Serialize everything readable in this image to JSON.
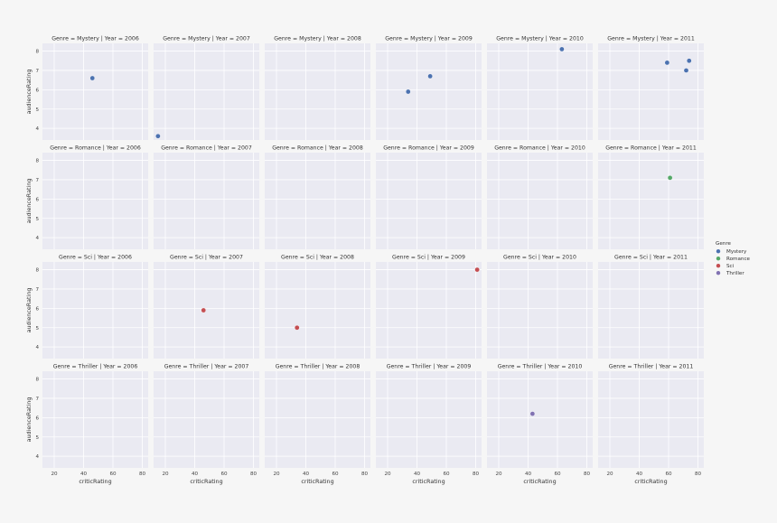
{
  "chart_data": {
    "type": "scatter",
    "x_label": "criticRating",
    "y_label": "audienceRating",
    "xlim": [
      12,
      84
    ],
    "ylim": [
      3.4,
      8.4
    ],
    "x_ticks": [
      20,
      40,
      60,
      80
    ],
    "y_ticks": [
      4,
      5,
      6,
      7,
      8
    ],
    "grid": true,
    "facet_row_var": "Genre",
    "facet_col_var": "Year",
    "rows": [
      "Mystery",
      "Romance",
      "Sci",
      "Thriller"
    ],
    "cols": [
      "2006",
      "2007",
      "2008",
      "2009",
      "2010",
      "2011"
    ],
    "facet_title_template": "Genre = {row} | Year = {col}",
    "legend": {
      "title": "Genre",
      "placement": "right",
      "entries": [
        {
          "name": "Mystery",
          "color": "#4c72b0"
        },
        {
          "name": "Romance",
          "color": "#55a868"
        },
        {
          "name": "Sci",
          "color": "#c44e52"
        },
        {
          "name": "Thriller",
          "color": "#8172b2"
        }
      ]
    },
    "points": [
      {
        "genre": "Mystery",
        "year": "2006",
        "x": 46,
        "y": 6.6
      },
      {
        "genre": "Mystery",
        "year": "2007",
        "x": 15,
        "y": 3.6
      },
      {
        "genre": "Mystery",
        "year": "2009",
        "x": 34,
        "y": 5.9
      },
      {
        "genre": "Mystery",
        "year": "2009",
        "x": 49,
        "y": 6.7
      },
      {
        "genre": "Mystery",
        "year": "2010",
        "x": 63,
        "y": 8.1
      },
      {
        "genre": "Mystery",
        "year": "2011",
        "x": 59,
        "y": 7.4
      },
      {
        "genre": "Mystery",
        "year": "2011",
        "x": 72,
        "y": 7.0
      },
      {
        "genre": "Mystery",
        "year": "2011",
        "x": 74,
        "y": 7.5
      },
      {
        "genre": "Romance",
        "year": "2011",
        "x": 61,
        "y": 7.1
      },
      {
        "genre": "Sci",
        "year": "2007",
        "x": 46,
        "y": 5.9
      },
      {
        "genre": "Sci",
        "year": "2008",
        "x": 34,
        "y": 5.0
      },
      {
        "genre": "Sci",
        "year": "2009",
        "x": 81,
        "y": 8.0
      },
      {
        "genre": "Thriller",
        "year": "2010",
        "x": 43,
        "y": 6.2
      }
    ]
  }
}
